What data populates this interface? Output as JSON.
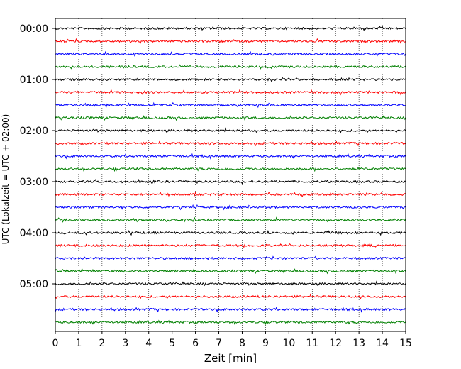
{
  "chart_data": {
    "type": "line",
    "title": "",
    "xlabel": "Zeit  [min]",
    "ylabel": "UTC (Lokalzeit = UTC + 02:00)",
    "xlim": [
      0,
      15
    ],
    "x_ticks": [
      "0",
      "1",
      "2",
      "3",
      "4",
      "5",
      "6",
      "7",
      "8",
      "9",
      "10",
      "11",
      "12",
      "13",
      "14",
      "15"
    ],
    "y_ticks": [
      "00:00",
      "01:00",
      "02:00",
      "03:00",
      "04:00",
      "05:00"
    ],
    "grid": "vertical dotted lines at each minute",
    "rows_per_hour": 4,
    "row_interval_min": 15,
    "row_count": 24,
    "row_colors": [
      "#000000",
      "#ff0000",
      "#0000ff",
      "#008000"
    ],
    "series_note": "helicorder trace: one horizontal line per 15-minute interval, noise amplitude small"
  }
}
